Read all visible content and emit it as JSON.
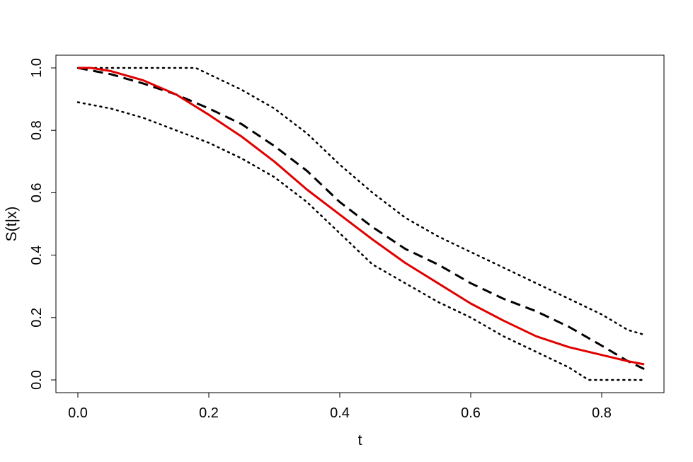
{
  "chart_data": {
    "type": "line",
    "xlabel": "t",
    "ylabel": "S(t|x)",
    "xlim": [
      0.0,
      0.87
    ],
    "ylim": [
      0.0,
      1.0
    ],
    "x_ticks": [
      "0.0",
      "0.2",
      "0.4",
      "0.6",
      "0.8"
    ],
    "y_ticks": [
      "0.0",
      "0.2",
      "0.4",
      "0.6",
      "0.8",
      "1.0"
    ],
    "grid": false,
    "series": [
      {
        "style": "dashed",
        "color": "#000000",
        "x": [
          0.0,
          0.05,
          0.1,
          0.15,
          0.2,
          0.25,
          0.3,
          0.35,
          0.4,
          0.45,
          0.5,
          0.55,
          0.6,
          0.65,
          0.7,
          0.75,
          0.8,
          0.84,
          0.865
        ],
        "y": [
          1.0,
          0.98,
          0.95,
          0.915,
          0.87,
          0.82,
          0.75,
          0.67,
          0.57,
          0.49,
          0.42,
          0.37,
          0.31,
          0.26,
          0.22,
          0.17,
          0.11,
          0.06,
          0.035
        ]
      },
      {
        "style": "solid",
        "color": "#e00000",
        "x": [
          0.0,
          0.02,
          0.05,
          0.1,
          0.15,
          0.2,
          0.25,
          0.3,
          0.35,
          0.4,
          0.45,
          0.5,
          0.55,
          0.6,
          0.65,
          0.7,
          0.75,
          0.8,
          0.84,
          0.865
        ],
        "y": [
          1.0,
          1.0,
          0.99,
          0.96,
          0.915,
          0.85,
          0.78,
          0.7,
          0.61,
          0.53,
          0.45,
          0.375,
          0.31,
          0.245,
          0.19,
          0.14,
          0.105,
          0.08,
          0.06,
          0.05
        ]
      },
      {
        "style": "dotted",
        "color": "#000000",
        "x": [
          0.0,
          0.05,
          0.1,
          0.15,
          0.18,
          0.25,
          0.3,
          0.35,
          0.4,
          0.45,
          0.5,
          0.55,
          0.6,
          0.65,
          0.7,
          0.75,
          0.8,
          0.84,
          0.865
        ],
        "y": [
          1.0,
          1.0,
          1.0,
          1.0,
          1.0,
          0.93,
          0.87,
          0.79,
          0.69,
          0.6,
          0.52,
          0.46,
          0.41,
          0.36,
          0.31,
          0.26,
          0.21,
          0.16,
          0.145
        ]
      },
      {
        "style": "dotted",
        "color": "#000000",
        "x": [
          0.0,
          0.05,
          0.1,
          0.15,
          0.2,
          0.25,
          0.3,
          0.35,
          0.4,
          0.45,
          0.5,
          0.55,
          0.6,
          0.65,
          0.7,
          0.75,
          0.78,
          0.8,
          0.865
        ],
        "y": [
          0.89,
          0.87,
          0.84,
          0.8,
          0.76,
          0.71,
          0.65,
          0.57,
          0.47,
          0.37,
          0.31,
          0.25,
          0.2,
          0.14,
          0.09,
          0.04,
          0.0,
          0.0,
          0.0
        ]
      }
    ]
  }
}
